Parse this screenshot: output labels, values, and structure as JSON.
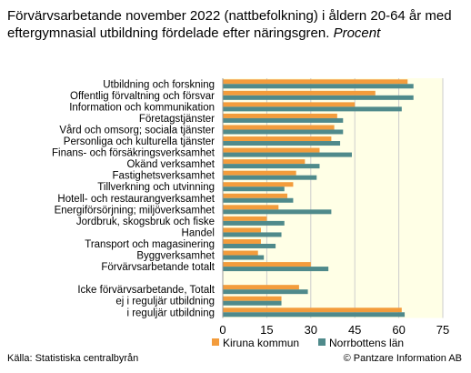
{
  "title": {
    "main": "Förvärvsarbetande november 2022 (nattbefolkning) i åldern 20-64 år med eftergymnasial utbildning fördelade efter näringsgren.",
    "unit": "Procent"
  },
  "source": "Källa: Statistiska centralbyrån",
  "copyright": "© Pantzare Information AB",
  "colors": {
    "kiruna": "#f39c3c",
    "norrbotten": "#4f8a8b",
    "plot_bg": "#ffffe6"
  },
  "chart_data": {
    "type": "bar",
    "orientation": "horizontal",
    "xlim": [
      0,
      75
    ],
    "xticks": [
      "0",
      "15",
      "30",
      "45",
      "60",
      "75"
    ],
    "grid": true,
    "legend_position": "bottom-right",
    "categories": [
      "Utbildning och forskning",
      "Offentlig förvaltning och försvar",
      "Information och kommunikation",
      "Företagstjänster",
      "Vård och omsorg; sociala tjänster",
      "Personliga och kulturella tjänster",
      "Finans- och försäkringsverksamhet",
      "Okänd verksamhet",
      "Fastighetsverksamhet",
      "Tillverkning och utvinning",
      "Hotell- och restaurangverksamhet",
      "Energiförsörjning; miljöverksamhet",
      "Jordbruk, skogsbruk och fiske",
      "Handel",
      "Transport och magasinering",
      "Byggverksamhet",
      "Förvärvsarbetande totalt",
      "",
      "Icke förvärvsarbetande, Totalt",
      "ej i reguljär utbildning",
      "i reguljär utbildning"
    ],
    "series": [
      {
        "name": "Kiruna kommun",
        "values": [
          63,
          52,
          45,
          39,
          38,
          37,
          33,
          28,
          25,
          24,
          22,
          19,
          15,
          13,
          13,
          12,
          30,
          null,
          26,
          20,
          61
        ]
      },
      {
        "name": "Norrbottens län",
        "values": [
          65,
          65,
          61,
          41,
          41,
          40,
          44,
          33,
          32,
          21,
          24,
          37,
          21,
          20,
          18,
          14,
          36,
          null,
          29,
          20,
          62
        ]
      }
    ]
  }
}
